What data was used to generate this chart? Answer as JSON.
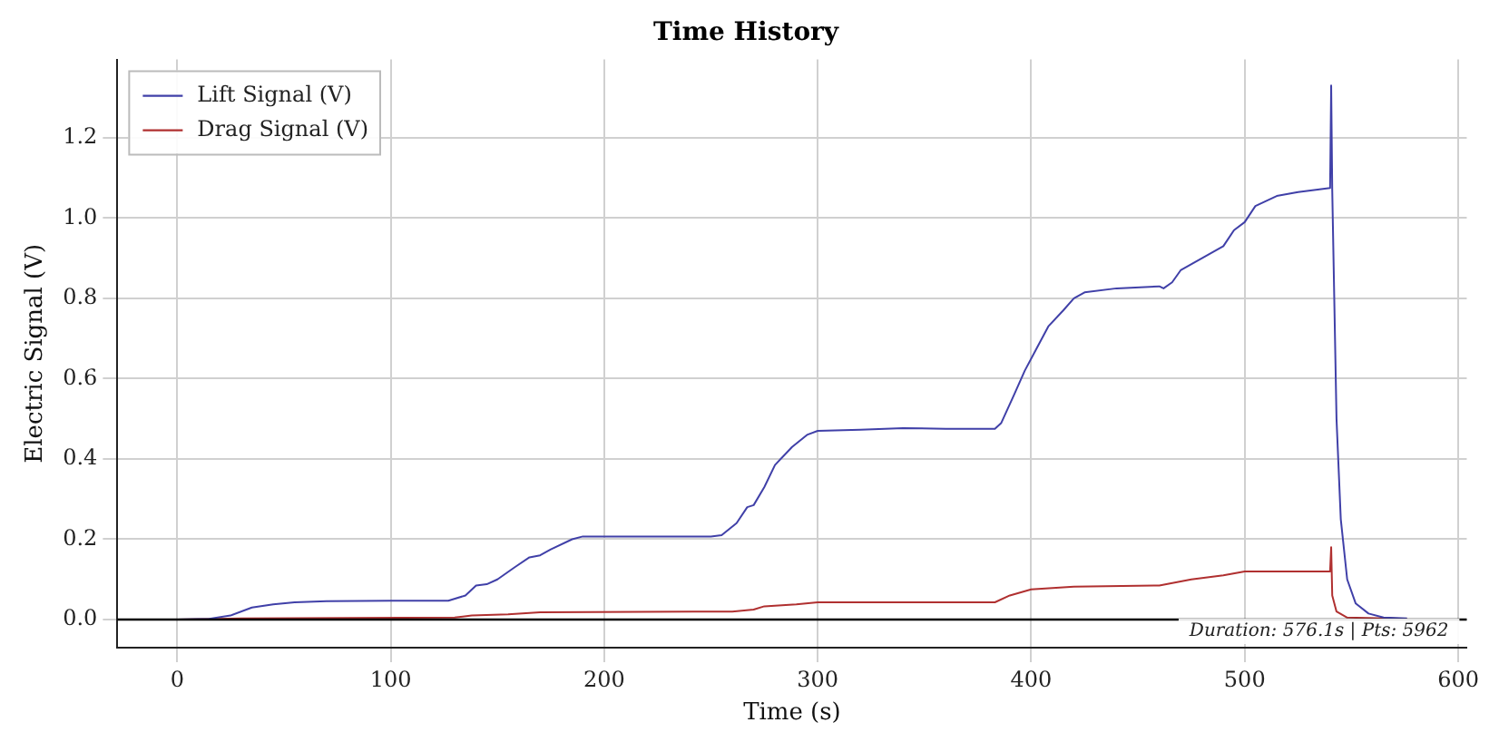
{
  "chart_data": {
    "type": "line",
    "title": "Time History",
    "xlabel": "Time (s)",
    "ylabel": "Electric Signal (V)",
    "xlim": [
      -28,
      604
    ],
    "xticks": [
      0,
      100,
      200,
      300,
      400,
      500,
      600
    ],
    "ylim": [
      -0.07,
      1.395
    ],
    "yticks": [
      {
        "value": 0,
        "label": "0.0"
      },
      0.2,
      0.4,
      0.6,
      0.8,
      {
        "value": 1,
        "label": "1.0"
      },
      1.2
    ],
    "grid": true,
    "legend": "top left",
    "marker": "none",
    "line_style": "solid",
    "ref_lines": [
      {
        "axis": "y",
        "value": 0,
        "color": "#000000"
      }
    ],
    "annotations": [
      "Duration: 576.1s | Pts: 5962"
    ],
    "series": [
      {
        "name": "Lift Signal (V)",
        "color": "#4040a8",
        "x": [
          0,
          15,
          25,
          35,
          45,
          55,
          70,
          100,
          127,
          135,
          140,
          145,
          150,
          158,
          165,
          170,
          175,
          185,
          190,
          250,
          255,
          262,
          267,
          270,
          275,
          280,
          288,
          295,
          300,
          320,
          340,
          360,
          383,
          386,
          392,
          397,
          402,
          408,
          415,
          420,
          425,
          440,
          460,
          462,
          466,
          470,
          480,
          490,
          495,
          500,
          505,
          515,
          525,
          540,
          540.5,
          541,
          543,
          545,
          548,
          552,
          558,
          565,
          576
        ],
        "values": [
          0,
          0.002,
          0.01,
          0.03,
          0.038,
          0.043,
          0.046,
          0.047,
          0.047,
          0.06,
          0.085,
          0.088,
          0.1,
          0.13,
          0.155,
          0.16,
          0.175,
          0.2,
          0.207,
          0.207,
          0.21,
          0.24,
          0.28,
          0.285,
          0.33,
          0.385,
          0.43,
          0.46,
          0.47,
          0.473,
          0.477,
          0.475,
          0.475,
          0.49,
          0.56,
          0.62,
          0.67,
          0.73,
          0.77,
          0.8,
          0.815,
          0.825,
          0.83,
          0.825,
          0.84,
          0.87,
          0.9,
          0.93,
          0.97,
          0.99,
          1.03,
          1.055,
          1.065,
          1.075,
          1.33,
          1.07,
          0.5,
          0.25,
          0.1,
          0.04,
          0.015,
          0.005,
          0.003
        ]
      },
      {
        "name": "Drag Signal (V)",
        "color": "#b03030",
        "x": [
          0,
          30,
          130,
          138,
          155,
          170,
          260,
          270,
          275,
          290,
          300,
          383,
          390,
          400,
          420,
          460,
          465,
          475,
          490,
          500,
          540,
          540.5,
          541,
          543,
          548,
          576
        ],
        "values": [
          0,
          0.003,
          0.005,
          0.01,
          0.013,
          0.018,
          0.02,
          0.025,
          0.033,
          0.038,
          0.043,
          0.043,
          0.06,
          0.075,
          0.082,
          0.085,
          0.09,
          0.1,
          0.11,
          0.12,
          0.12,
          0.18,
          0.06,
          0.02,
          0.005,
          0.002
        ]
      }
    ]
  }
}
